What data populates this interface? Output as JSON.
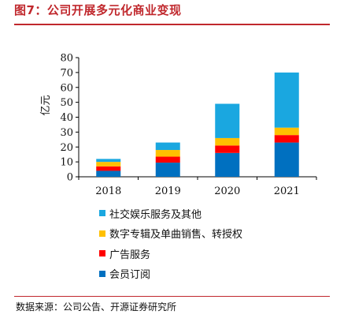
{
  "figure": {
    "title": "图7：公司开展多元化商业变现",
    "source": "数据来源：公司公告、开源证券研究所"
  },
  "chart_data": {
    "type": "bar",
    "stacked": true,
    "categories": [
      "2018",
      "2019",
      "2020",
      "2021"
    ],
    "series": [
      {
        "name": "会员订阅",
        "color": "#0070c0",
        "values": [
          4,
          9.5,
          16,
          23
        ]
      },
      {
        "name": "广告服务",
        "color": "#ff0000",
        "values": [
          3,
          4,
          5,
          5
        ]
      },
      {
        "name": "数字专辑及单曲销售、转授权",
        "color": "#ffc000",
        "values": [
          3,
          4.5,
          5,
          5
        ]
      },
      {
        "name": "社交娱乐服务及其他",
        "color": "#1aa7e0",
        "values": [
          2,
          5,
          23,
          37
        ]
      }
    ],
    "ylabel": "亿元",
    "ylim": [
      0,
      80
    ],
    "yticks": [
      0,
      10,
      20,
      30,
      40,
      50,
      60,
      70,
      80
    ],
    "grid": false,
    "legend_position": "bottom"
  }
}
